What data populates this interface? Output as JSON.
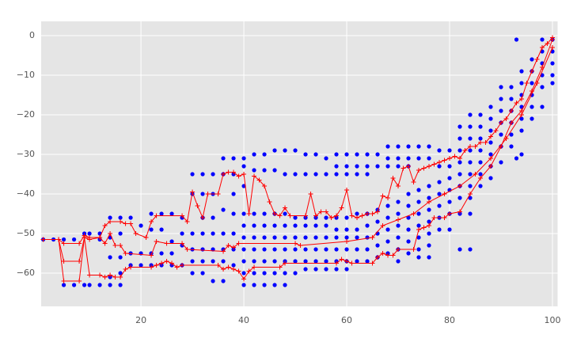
{
  "chart_data": {
    "type": "scatter",
    "grid": true,
    "background": "#e5e5e5",
    "xlim": [
      0.6,
      101
    ],
    "ylim": [
      -68.4,
      3.6
    ],
    "xticks": [
      20,
      40,
      60,
      80,
      100
    ],
    "yticks": [
      0,
      {
        "value": -10,
        "label": "−10"
      },
      {
        "value": -20,
        "label": "−20"
      },
      {
        "value": -30,
        "label": "−30"
      },
      {
        "value": -40,
        "label": "−40"
      },
      {
        "value": -50,
        "label": "−50"
      },
      {
        "value": -60,
        "label": "−60"
      }
    ],
    "series": [
      {
        "mode": "markers",
        "color": "#0000ff",
        "x": [
          1,
          3,
          5,
          5,
          7,
          7,
          9,
          9,
          10,
          10,
          12,
          12,
          12,
          14,
          14,
          14,
          14,
          14,
          16,
          16,
          16,
          16,
          16,
          18,
          18,
          18,
          20,
          20,
          20,
          22,
          22,
          22,
          22,
          24,
          24,
          24,
          24,
          26,
          26,
          26,
          26,
          28,
          28,
          28,
          28,
          30,
          30,
          30,
          30,
          30,
          30,
          32,
          32,
          32,
          32,
          32,
          32,
          32,
          34,
          34,
          34,
          34,
          34,
          34,
          34,
          36,
          36,
          36,
          36,
          36,
          36,
          36,
          38,
          38,
          38,
          38,
          38,
          38,
          38,
          40,
          40,
          40,
          40,
          40,
          40,
          40,
          40,
          40,
          40,
          42,
          42,
          42,
          42,
          42,
          42,
          42,
          42,
          42,
          44,
          44,
          44,
          44,
          44,
          44,
          44,
          44,
          44,
          46,
          46,
          46,
          46,
          46,
          46,
          46,
          46,
          46,
          48,
          48,
          48,
          48,
          48,
          48,
          48,
          48,
          48,
          50,
          50,
          50,
          50,
          50,
          50,
          50,
          50,
          52,
          52,
          52,
          52,
          52,
          52,
          52,
          52,
          54,
          54,
          54,
          54,
          54,
          54,
          54,
          54,
          56,
          56,
          56,
          56,
          56,
          56,
          56,
          56,
          58,
          58,
          58,
          58,
          58,
          58,
          58,
          58,
          58,
          60,
          60,
          60,
          60,
          60,
          60,
          60,
          60,
          60,
          62,
          62,
          62,
          62,
          62,
          62,
          62,
          62,
          64,
          64,
          64,
          64,
          64,
          64,
          64,
          64,
          66,
          66,
          66,
          66,
          66,
          66,
          66,
          68,
          68,
          68,
          68,
          68,
          68,
          68,
          68,
          70,
          70,
          70,
          70,
          70,
          70,
          70,
          70,
          70,
          72,
          72,
          72,
          72,
          72,
          72,
          72,
          72,
          72,
          74,
          74,
          74,
          74,
          74,
          74,
          74,
          74,
          74,
          76,
          76,
          76,
          76,
          76,
          76,
          76,
          76,
          76,
          78,
          78,
          78,
          78,
          78,
          78,
          78,
          80,
          80,
          80,
          80,
          80,
          80,
          80,
          82,
          82,
          82,
          82,
          82,
          82,
          82,
          82,
          82,
          84,
          84,
          84,
          84,
          84,
          84,
          84,
          84,
          84,
          84,
          86,
          86,
          86,
          86,
          86,
          86,
          86,
          88,
          88,
          88,
          88,
          88,
          88,
          88,
          90,
          90,
          90,
          90,
          90,
          90,
          90,
          92,
          92,
          92,
          92,
          92,
          92,
          93,
          93,
          94,
          94,
          94,
          94,
          94,
          94,
          94,
          96,
          96,
          96,
          96,
          96,
          96,
          98,
          98,
          98,
          98,
          98,
          98,
          100,
          100,
          100,
          100,
          100
        ],
        "values": [
          -51.5,
          -51.5,
          -51.5,
          -63,
          -51.5,
          -63,
          -50,
          -63,
          -50,
          -63,
          -50,
          -51.5,
          -63,
          -46,
          -51,
          -56,
          -61,
          -63,
          -46,
          -50,
          -56,
          -60,
          -63,
          -46,
          -55,
          -58,
          -48,
          -55,
          -58,
          -45,
          -49,
          -55,
          -58,
          -45,
          -49,
          -55,
          -58,
          -45,
          -52,
          -55,
          -58,
          -46,
          -50,
          -53,
          -58,
          -35,
          -40,
          -50,
          -54,
          -57,
          -60,
          -35,
          -40,
          -46,
          -50,
          -54,
          -57,
          -60,
          -35,
          -40,
          -46,
          -50,
          -54,
          -57,
          -62,
          -31,
          -35,
          -44,
          -50,
          -54,
          -57,
          -62,
          -31,
          -35,
          -40,
          -45,
          -50,
          -54,
          -58,
          -31,
          -33,
          -38,
          -45,
          -48,
          -51,
          -54,
          -57,
          -60,
          -63,
          -30,
          -34,
          -45,
          -48,
          -51,
          -54,
          -57,
          -60,
          -63,
          -30,
          -34,
          -45,
          -48,
          -51,
          -54,
          -57,
          -60,
          -63,
          -29,
          -34,
          -45,
          -48,
          -51,
          -54,
          -57,
          -60,
          -63,
          -29,
          -35,
          -45,
          -48,
          -51,
          -54,
          -57,
          -60,
          -63,
          -29,
          -35,
          -46,
          -48,
          -51,
          -54,
          -57,
          -60,
          -30,
          -35,
          -46,
          -48,
          -51,
          -54,
          -57,
          -59,
          -30,
          -35,
          -46,
          -48,
          -51,
          -54,
          -57,
          -59,
          -31,
          -35,
          -46,
          -48,
          -51,
          -54,
          -57,
          -59,
          -30,
          -33,
          -35,
          -46,
          -49,
          -51,
          -54,
          -57,
          -59,
          -30,
          -33,
          -35,
          -46,
          -49,
          -51,
          -54,
          -57,
          -59,
          -30,
          -33,
          -35,
          -45,
          -49,
          -51,
          -54,
          -57,
          -30,
          -33,
          -35,
          -45,
          -48,
          -51,
          -54,
          -57,
          -30,
          -33,
          -44,
          -47,
          -50,
          -53,
          -56,
          -28,
          -31,
          -33,
          -43,
          -46,
          -49,
          -52,
          -55,
          -28,
          -31,
          -33,
          -42,
          -45,
          -48,
          -51,
          -54,
          -57,
          -28,
          -31,
          -33,
          -40,
          -43,
          -46,
          -49,
          -52,
          -55,
          -28,
          -31,
          -39,
          -42,
          -45,
          -48,
          -51,
          -54,
          -56,
          -28,
          -31,
          -38,
          -41,
          -44,
          -47,
          -50,
          -53,
          -56,
          -29,
          -33,
          -37,
          -40,
          -43,
          -46,
          -49,
          -29,
          -33,
          -36,
          -39,
          -42,
          -45,
          -49,
          -23,
          -26,
          -29,
          -32,
          -35,
          -38,
          -41,
          -45,
          -54,
          -20,
          -23,
          -26,
          -29,
          -32,
          -35,
          -38,
          -41,
          -45,
          -54,
          -20,
          -23,
          -26,
          -29,
          -32,
          -35,
          -38,
          -18,
          -21,
          -24,
          -27,
          -30,
          -33,
          -36,
          -13,
          -16,
          -19,
          -22,
          -25,
          -28,
          -32,
          -13,
          -16,
          -19,
          -22,
          -25,
          -28,
          -1,
          -31,
          -9,
          -12,
          -15,
          -18,
          -21,
          -24,
          -30,
          -6,
          -9,
          -12,
          -15,
          -18,
          -21,
          -1,
          -4,
          -7,
          -10,
          -13,
          -18,
          -1,
          -4,
          -7,
          -10,
          -12
        ]
      },
      {
        "mode": "lines+markers",
        "color": "#ff0000",
        "x": [
          1,
          4,
          5,
          8,
          9,
          10,
          12,
          13,
          14,
          16,
          17,
          18,
          19,
          21,
          22,
          23,
          28,
          29,
          30,
          31,
          32,
          33,
          35,
          36,
          37,
          38,
          39,
          40,
          41,
          42,
          43,
          44,
          45,
          46,
          47,
          48,
          49,
          52,
          53,
          54,
          55,
          56,
          57,
          58,
          59,
          60,
          61,
          62,
          63,
          64,
          65,
          66,
          67,
          68,
          69,
          70,
          71,
          72,
          73,
          74,
          75,
          76,
          77,
          78,
          79,
          80,
          81,
          82,
          83,
          84,
          85,
          86,
          87,
          88,
          89,
          90,
          91,
          92,
          93,
          94,
          95,
          96,
          97,
          98,
          99,
          100
        ],
        "values": [
          -51.5,
          -51.5,
          -52.5,
          -52.5,
          -50.5,
          -51,
          -51,
          -48,
          -47,
          -47,
          -47.5,
          -47.5,
          -50,
          -51,
          -47,
          -45.5,
          -45.5,
          -47,
          -39.5,
          -43,
          -46,
          -40,
          -40,
          -35,
          -34.5,
          -34.5,
          -35.5,
          -35,
          -45,
          -35.5,
          -36.5,
          -38,
          -42,
          -45,
          -45.5,
          -43.5,
          -45.5,
          -45.5,
          -40,
          -45.5,
          -44.5,
          -44.5,
          -46,
          -45.5,
          -43.5,
          -39,
          -45.5,
          -46,
          -45.5,
          -45,
          -45,
          -44.5,
          -40.5,
          -41,
          -36,
          -38,
          -33.5,
          -33,
          -37,
          -34,
          -33.5,
          -33,
          -32.5,
          -32,
          -31.5,
          -31,
          -30.5,
          -31,
          -29,
          -28,
          -28,
          -27,
          -27,
          -25.5,
          -24,
          -22,
          -21,
          -19,
          -17,
          -16,
          -12,
          -9,
          -6,
          -3,
          -2,
          -0.5
        ]
      },
      {
        "mode": "lines+markers",
        "color": "#ff0000",
        "x": [
          1,
          4,
          5,
          8,
          9,
          10,
          12,
          13,
          14,
          15,
          16,
          17,
          22,
          23,
          25,
          28,
          29,
          36,
          37,
          38,
          39,
          50,
          51,
          60,
          65,
          67,
          70,
          73,
          76,
          79,
          82,
          85,
          88,
          91,
          94,
          97,
          100
        ],
        "values": [
          -51.5,
          -51.5,
          -57,
          -57,
          -51,
          -51.5,
          -51,
          -52.5,
          -50,
          -53,
          -53,
          -55,
          -55.5,
          -52,
          -52.5,
          -52.5,
          -54,
          -54.5,
          -53,
          -53.5,
          -52.5,
          -52.5,
          -53,
          -52,
          -51,
          -48,
          -46.5,
          -45,
          -42,
          -40,
          -38,
          -35,
          -31,
          -26,
          -20,
          -12,
          -3
        ]
      },
      {
        "mode": "lines+markers",
        "color": "#ff0000",
        "x": [
          1,
          4,
          5,
          8,
          9,
          10,
          12,
          13,
          14,
          15,
          16,
          17,
          18,
          22,
          23,
          24,
          25,
          26,
          27,
          28,
          35,
          36,
          37,
          38,
          39,
          40,
          41,
          42,
          47,
          48,
          58,
          59,
          60,
          61,
          65,
          66,
          67,
          68,
          69,
          70,
          73,
          74,
          75,
          76,
          77,
          79,
          80,
          82,
          84,
          86,
          88,
          90,
          92,
          94,
          96,
          98,
          100
        ],
        "values": [
          -51.5,
          -51.5,
          -62,
          -62,
          -51,
          -60.5,
          -60.5,
          -61,
          -60.5,
          -61,
          -61,
          -59,
          -58.5,
          -58.5,
          -58,
          -57.5,
          -57,
          -57.5,
          -58.5,
          -58,
          -58,
          -59,
          -58.5,
          -59,
          -59.5,
          -61.5,
          -59.5,
          -58.5,
          -58.5,
          -57.5,
          -57.5,
          -56.5,
          -57,
          -57.5,
          -57.5,
          -56,
          -55,
          -55.5,
          -55.5,
          -54,
          -54,
          -49,
          -48.5,
          -48,
          -46,
          -46,
          -45,
          -44.5,
          -40,
          -36,
          -33,
          -28,
          -22,
          -19,
          -14,
          -8,
          -1
        ]
      }
    ]
  }
}
